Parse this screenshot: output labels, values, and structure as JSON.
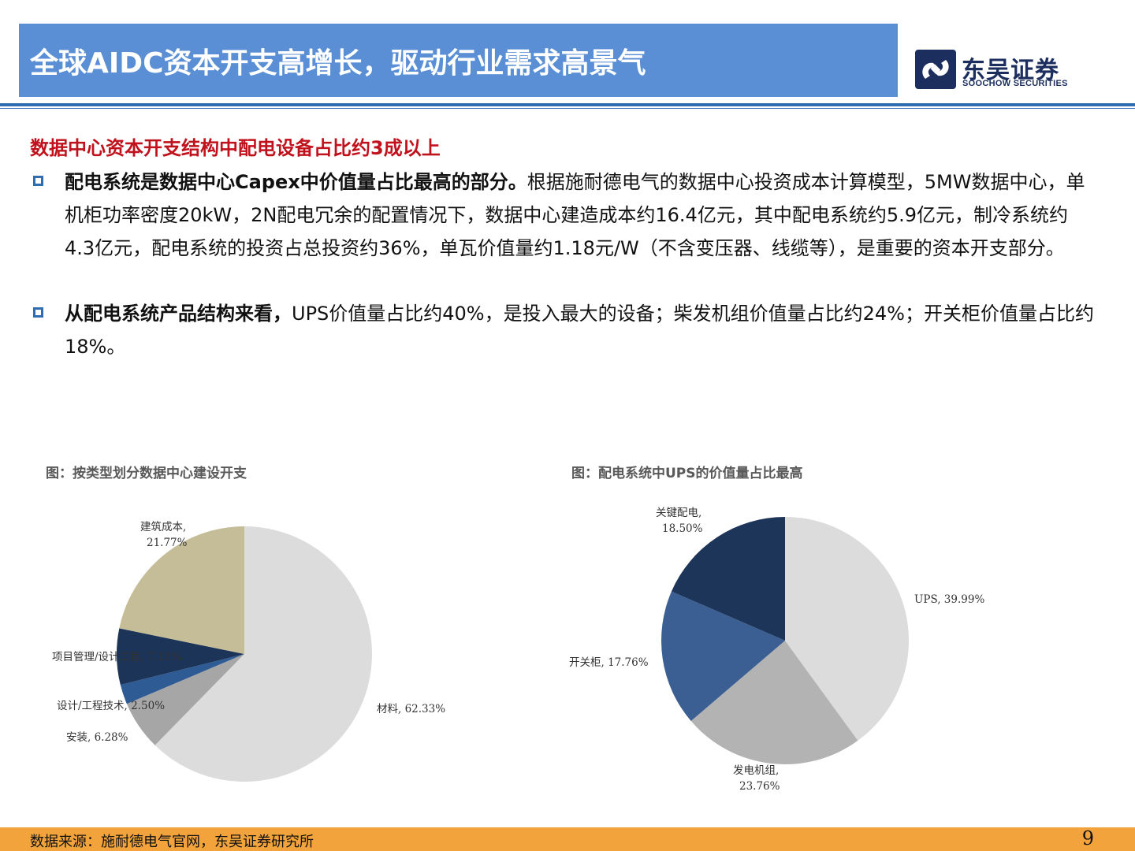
{
  "header": {
    "title": "全球AIDC资本开支高增长，驱动行业需求高景气",
    "logo_cn": "东吴证券",
    "logo_en": "SOOCHOW SECURITIES"
  },
  "subheading": "数据中心资本开支结构中配电设备占比约3成以上",
  "bullets": [
    {
      "bold": "配电系统是数据中心Capex中价值量占比最高的部分。",
      "text": "根据施耐德电气的数据中心投资成本计算模型，5MW数据中心，单机柜功率密度20kW，2N配电冗余的配置情况下，数据中心建造成本约16.4亿元，其中配电系统约5.9亿元，制冷系统约4.3亿元，配电系统的投资占总投资约36%，单瓦价值量约1.18元/W（不含变压器、线缆等），是重要的资本开支部分。"
    },
    {
      "bold": "从配电系统产品结构来看，",
      "text": "UPS价值量占比约40%，是投入最大的设备；柴发机组价值量占比约24%；开关柜价值量占比约18%。"
    }
  ],
  "chart_titles": [
    "图：按类型划分数据中心建设开支",
    "图：配电系统中UPS的价值量占比最高"
  ],
  "chart_data": [
    {
      "type": "pie",
      "categories": [
        "材料",
        "安装",
        "设计/工程技术",
        "项目管理/设计工程",
        "建筑成本"
      ],
      "values": [
        62.33,
        6.28,
        2.5,
        7.11,
        21.77
      ],
      "labels": [
        "材料, 62.33%",
        "安装, 6.28%",
        "设计/工程技术, 2.50%",
        "项目管理/设计工程, 7.11%",
        "建筑成本, 21.77%"
      ],
      "colors": [
        "#dcdcdc",
        "#a6a6a6",
        "#2f5b95",
        "#1c3458",
        "#c5bd97"
      ]
    },
    {
      "type": "pie",
      "categories": [
        "UPS",
        "发电机组",
        "开关柜",
        "关键配电"
      ],
      "values": [
        39.99,
        23.76,
        17.76,
        18.5
      ],
      "labels": [
        "UPS, 39.99%",
        "发电机组, 23.76%",
        "开关柜, 17.76%",
        "关键配电, 18.50%"
      ],
      "colors": [
        "#dcdcdc",
        "#b3b3b3",
        "#3b5f92",
        "#1d3559"
      ]
    }
  ],
  "footer": {
    "source": "数据来源：施耐德电气官网，东吴证券研究所",
    "page": "9"
  }
}
